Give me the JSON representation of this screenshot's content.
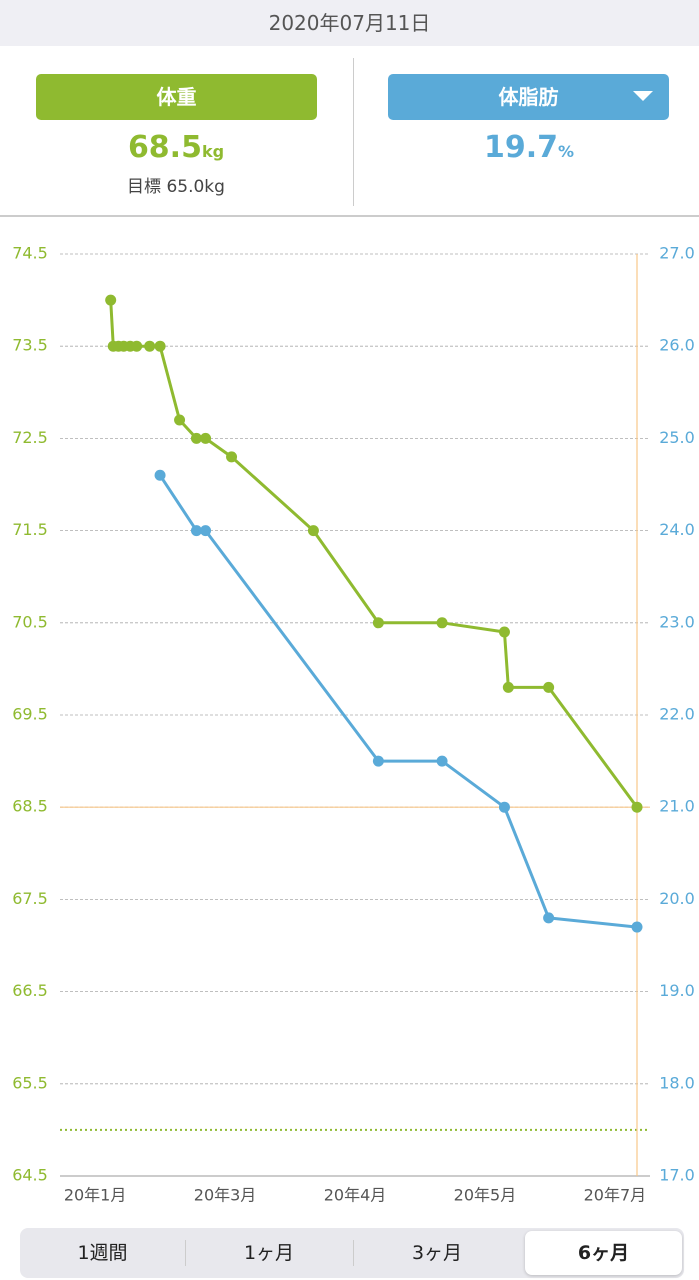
{
  "header": {
    "date": "2020年07月11日"
  },
  "summary": {
    "weight_value": "68.5",
    "weight_unit": "kg",
    "goal_text": "目標 65.0kg",
    "fat_value": "19.7",
    "fat_unit": "%"
  },
  "chart_data": {
    "type": "line",
    "xlim": [
      -0.27,
      4.17
    ],
    "xticks": [
      {
        "value": 0,
        "label": "20年1月"
      },
      {
        "value": 1,
        "label": "20年3月"
      },
      {
        "value": 2,
        "label": "20年4月"
      },
      {
        "value": 3,
        "label": "20年5月"
      },
      {
        "value": 4,
        "label": "20年7月"
      }
    ],
    "ylim": [
      64.5,
      74.5
    ],
    "yticks": [
      64.5,
      65.5,
      66.5,
      67.5,
      68.5,
      69.5,
      70.5,
      71.5,
      72.5,
      73.5,
      74.5
    ],
    "y2lim": [
      17,
      27
    ],
    "y2ticks": [
      {
        "value": 17,
        "label": "17.0"
      },
      {
        "value": 18,
        "label": "18.0"
      },
      {
        "value": 19,
        "label": "19.0"
      },
      {
        "value": 20,
        "label": "20.0"
      },
      {
        "value": 21,
        "label": "21.0"
      },
      {
        "value": 22,
        "label": "22.0"
      },
      {
        "value": 23,
        "label": "23.0"
      },
      {
        "value": 24,
        "label": "24.0"
      },
      {
        "value": 25,
        "label": "25.0"
      },
      {
        "value": 26,
        "label": "26.0"
      },
      {
        "value": 27,
        "label": "27.0"
      }
    ],
    "grid": true,
    "goal": 65,
    "series": [
      {
        "name": "体重",
        "color": "#8fba30",
        "x": [
          0.12,
          0.14,
          0.18,
          0.22,
          0.27,
          0.32,
          0.42,
          0.5,
          0.65,
          0.78,
          0.85,
          1.05,
          1.68,
          2.18,
          2.67,
          3.15,
          3.18,
          3.49,
          4.17
        ],
        "values": [
          74.0,
          73.5,
          73.5,
          73.5,
          73.5,
          73.5,
          73.5,
          73.5,
          72.7,
          72.5,
          72.5,
          72.3,
          71.5,
          70.5,
          70.5,
          70.4,
          69.8,
          69.8,
          68.5
        ]
      },
      {
        "name": "体脂肪",
        "color": "#5aaad8",
        "axis": "y2",
        "x": [
          0.5,
          0.78,
          0.85,
          2.18,
          2.67,
          3.15,
          3.49,
          4.17
        ],
        "values": [
          24.6,
          24.0,
          24.0,
          21.5,
          21.5,
          21.0,
          19.8,
          19.7
        ]
      }
    ]
  },
  "tabs": [
    "1週間",
    "1ヶ月",
    "3ヶ月",
    "6ヶ月"
  ]
}
